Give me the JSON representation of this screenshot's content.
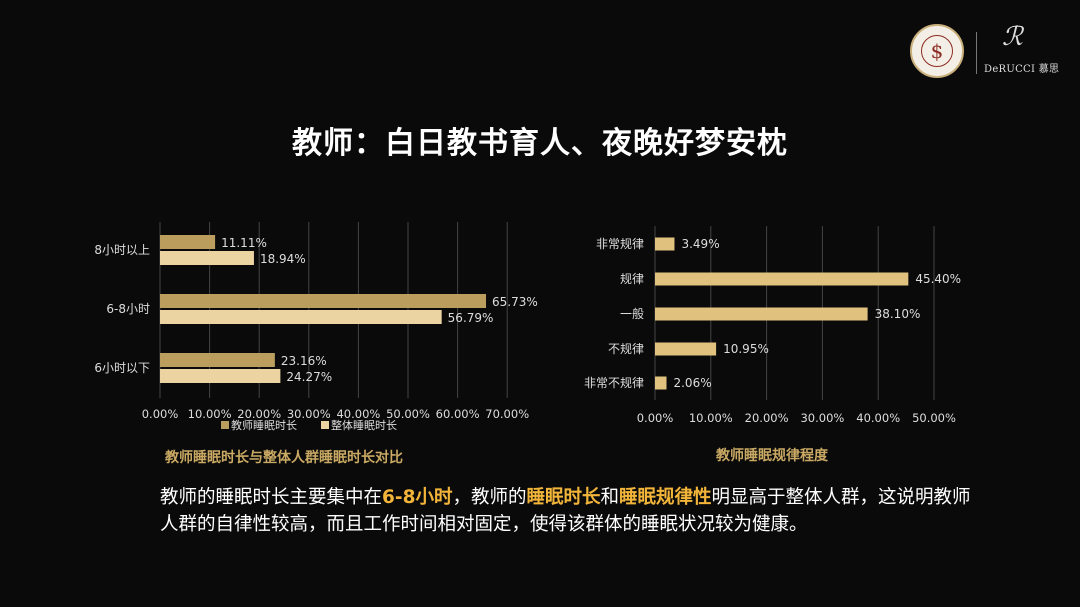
{
  "logo": {
    "brand_mark": "ℛ",
    "brand_name": "DeRUCCI 慕思",
    "seal_symbol": "$"
  },
  "title": "教师：白日教书育人、夜晚好梦安枕",
  "chart_data": [
    {
      "type": "bar",
      "orientation": "horizontal",
      "categories": [
        "8小时以上",
        "6-8小时",
        "6小时以下"
      ],
      "series": [
        {
          "name": "教师睡眠时长",
          "values": [
            11.11,
            65.73,
            23.16
          ],
          "labels": [
            "11.11%",
            "65.73%",
            "23.16%"
          ],
          "color": "#bb9d5e"
        },
        {
          "name": "整体睡眠时长",
          "values": [
            18.94,
            56.79,
            24.27
          ],
          "labels": [
            "18.94%",
            "56.79%",
            "24.27%"
          ],
          "color": "#ecd3a2"
        }
      ],
      "xlim": [
        0,
        70
      ],
      "xticks": [
        "0.00%",
        "10.00%",
        "20.00%",
        "30.00%",
        "40.00%",
        "50.00%",
        "60.00%",
        "70.00%"
      ],
      "grid": true,
      "legend_position": "bottom",
      "caption": "教师睡眠时长与整体人群睡眠时长对比"
    },
    {
      "type": "bar",
      "orientation": "horizontal",
      "categories": [
        "非常规律",
        "规律",
        "一般",
        "不规律",
        "非常不规律"
      ],
      "series": [
        {
          "values": [
            3.49,
            45.4,
            38.1,
            10.95,
            2.06
          ],
          "labels": [
            "3.49%",
            "45.40%",
            "38.10%",
            "10.95%",
            "2.06%"
          ],
          "color": "#e0c27e"
        }
      ],
      "xlim": [
        0,
        50
      ],
      "xticks": [
        "0.00%",
        "10.00%",
        "20.00%",
        "30.00%",
        "40.00%",
        "50.00%"
      ],
      "grid": true,
      "caption": "教师睡眠规律程度"
    }
  ],
  "summary": {
    "p1": "教师的睡眠时长主要集中在",
    "h1": "6-8小时",
    "p2": "，教师的",
    "h2": "睡眠时长",
    "p3": "和",
    "h3": "睡眠规律性",
    "p4": "明显高于整体人群，这说明教师人群的自律性较高，而且工作时间相对固定，使得该群体的睡眠状况较为健康。"
  },
  "colors": {
    "background": "#0a0a0a",
    "highlight": "#f2b53a",
    "caption": "#c9a963"
  }
}
